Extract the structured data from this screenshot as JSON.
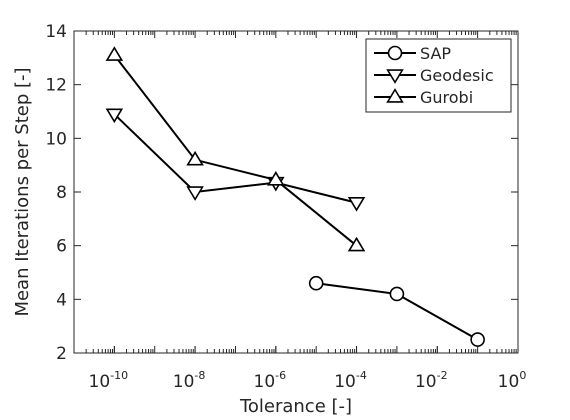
{
  "chart_data": {
    "type": "line",
    "xscale": "log",
    "xlim": [
      1e-11,
      1
    ],
    "ylim": [
      2,
      14
    ],
    "xlabel": "Tolerance [-]",
    "ylabel": "Mean Iterations per Step [-]",
    "x_major_ticks": [
      {
        "value": 1e-10,
        "base": "10",
        "exp": "-10"
      },
      {
        "value": 1e-08,
        "base": "10",
        "exp": "-8"
      },
      {
        "value": 1e-06,
        "base": "10",
        "exp": "-6"
      },
      {
        "value": 0.0001,
        "base": "10",
        "exp": "-4"
      },
      {
        "value": 0.01,
        "base": "10",
        "exp": "-2"
      },
      {
        "value": 1,
        "base": "10",
        "exp": "0"
      }
    ],
    "y_ticks": [
      {
        "value": 2,
        "label": "2"
      },
      {
        "value": 4,
        "label": "4"
      },
      {
        "value": 6,
        "label": "6"
      },
      {
        "value": 8,
        "label": "8"
      },
      {
        "value": 10,
        "label": "10"
      },
      {
        "value": 12,
        "label": "12"
      },
      {
        "value": 14,
        "label": "14"
      }
    ],
    "grid": false,
    "legend_position": "top-right",
    "series": [
      {
        "name": "SAP",
        "marker": "circle",
        "color": "#000000",
        "x": [
          1e-05,
          0.001,
          0.1
        ],
        "y": [
          4.6,
          4.2,
          2.5
        ]
      },
      {
        "name": "Geodesic",
        "marker": "triangle-down",
        "color": "#000000",
        "x": [
          1e-10,
          1e-08,
          1e-06,
          0.0001
        ],
        "y": [
          10.9,
          8.0,
          8.35,
          7.6
        ]
      },
      {
        "name": "Gurobi",
        "marker": "triangle-up",
        "color": "#000000",
        "x": [
          1e-10,
          1e-08,
          1e-06,
          0.0001
        ],
        "y": [
          13.1,
          9.2,
          8.45,
          6.0
        ]
      }
    ]
  }
}
